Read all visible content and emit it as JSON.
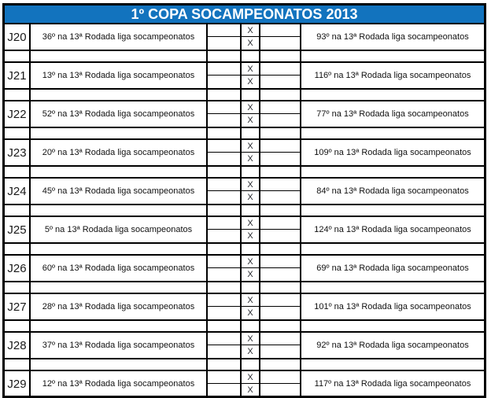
{
  "header": {
    "title": "1º COPA SOCAMPEONATOS 2013",
    "bg_color": "#1273BE",
    "text_color": "#FFFFFF"
  },
  "rows": [
    {
      "id": "J20",
      "home": "36º na 13ª Rodada liga socampeonatos",
      "away": "93º na 13ª Rodada liga socampeonatos",
      "x1": "X",
      "x2": "X"
    },
    {
      "id": "J21",
      "home": "13º na 13ª Rodada liga socampeonatos",
      "away": "116º na 13ª Rodada liga socampeonatos",
      "x1": "X",
      "x2": "X"
    },
    {
      "id": "J22",
      "home": "52º na 13ª Rodada liga socampeonatos",
      "away": "77º na 13ª Rodada liga socampeonatos",
      "x1": "X",
      "x2": "X"
    },
    {
      "id": "J23",
      "home": "20º na 13ª Rodada liga socampeonatos",
      "away": "109º na 13ª Rodada liga socampeonatos",
      "x1": "X",
      "x2": "X"
    },
    {
      "id": "J24",
      "home": "45º na 13ª Rodada liga socampeonatos",
      "away": "84º na 13ª Rodada liga socampeonatos",
      "x1": "X",
      "x2": "X"
    },
    {
      "id": "J25",
      "home": "5º na 13ª Rodada liga socampeonatos",
      "away": "124º na 13ª Rodada liga socampeonatos",
      "x1": "X",
      "x2": "X"
    },
    {
      "id": "J26",
      "home": "60º na 13ª Rodada liga socampeonatos",
      "away": "69º na 13ª Rodada liga socampeonatos",
      "x1": "X",
      "x2": "X"
    },
    {
      "id": "J27",
      "home": "28º na 13ª Rodada liga socampeonatos",
      "away": "101º na 13ª Rodada liga socampeonatos",
      "x1": "X",
      "x2": "X"
    },
    {
      "id": "J28",
      "home": "37º na 13ª Rodada liga socampeonatos",
      "away": "92º na 13ª Rodada liga socampeonatos",
      "x1": "X",
      "x2": "X"
    },
    {
      "id": "J29",
      "home": "12º na 13ª Rodada liga socampeonatos",
      "away": "117º na 13ª Rodada liga socampeonatos",
      "x1": "X",
      "x2": "X"
    }
  ]
}
